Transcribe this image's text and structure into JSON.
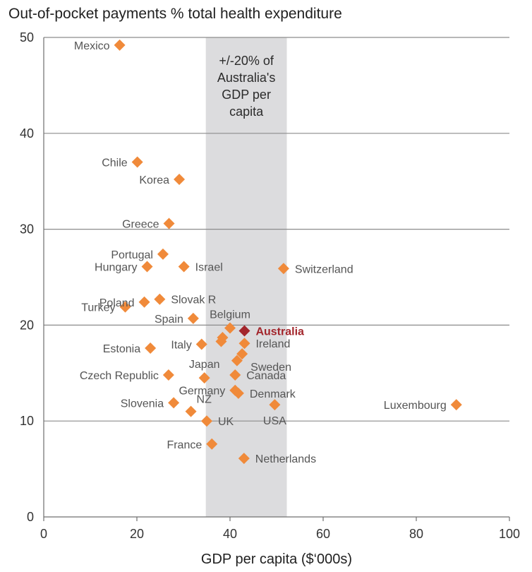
{
  "chart_data": {
    "type": "scatter",
    "title": "Out-of-pocket payments % total health expenditure",
    "xlabel": "GDP per capita ($‘000s)",
    "ylabel": "",
    "xlim": [
      0,
      100
    ],
    "ylim": [
      0,
      50
    ],
    "xticks": [
      0,
      20,
      40,
      60,
      80,
      100
    ],
    "yticks": [
      0,
      10,
      20,
      30,
      40,
      50
    ],
    "grid": "horizontal",
    "band": {
      "x_from": 34.8,
      "x_to": 52.2,
      "label": [
        "+/-20% of",
        "Australia's",
        "GDP per",
        "capita"
      ],
      "color": "#dcdcde"
    },
    "marker_color": "#f08a3a",
    "highlight_color": "#a3262c",
    "points": [
      {
        "label": "Mexico",
        "x": 16.3,
        "y": 49.2,
        "anchor": "left"
      },
      {
        "label": "Chile",
        "x": 20.1,
        "y": 37.0,
        "anchor": "left"
      },
      {
        "label": "Korea",
        "x": 29.1,
        "y": 35.2,
        "anchor": "left"
      },
      {
        "label": "Greece",
        "x": 26.9,
        "y": 30.6,
        "anchor": "left"
      },
      {
        "label": "Portugal",
        "x": 25.6,
        "y": 27.4,
        "anchor": "left"
      },
      {
        "label": "Hungary",
        "x": 22.2,
        "y": 26.1,
        "anchor": "left"
      },
      {
        "label": "Israel",
        "x": 30.1,
        "y": 26.1,
        "anchor": "right"
      },
      {
        "label": "Switzerland",
        "x": 51.5,
        "y": 25.9,
        "anchor": "right"
      },
      {
        "label": "Poland",
        "x": 21.6,
        "y": 22.4,
        "anchor": "left"
      },
      {
        "label": "Slovak R",
        "x": 24.9,
        "y": 22.7,
        "anchor": "right"
      },
      {
        "label": "Turkey",
        "x": 17.5,
        "y": 21.9,
        "anchor": "left"
      },
      {
        "label": "Belgium",
        "x": 40.0,
        "y": 19.7,
        "anchor": "above"
      },
      {
        "label": "Spain",
        "x": 32.1,
        "y": 20.7,
        "anchor": "left"
      },
      {
        "label": "Australia",
        "x": 43.1,
        "y": 19.4,
        "anchor": "right",
        "highlight": true
      },
      {
        "label": "Ireland",
        "x": 43.1,
        "y": 18.1,
        "anchor": "right"
      },
      {
        "label": "Estonia",
        "x": 22.9,
        "y": 17.6,
        "anchor": "left"
      },
      {
        "label": "Italy",
        "x": 33.9,
        "y": 18.0,
        "anchor": "left"
      },
      {
        "label": "Sweden",
        "x": 42.6,
        "y": 17.0,
        "anchor": "belowright"
      },
      {
        "label": "Japan",
        "x": 34.5,
        "y": 14.5,
        "anchor": "above"
      },
      {
        "label": "Czech Republic",
        "x": 26.8,
        "y": 14.8,
        "anchor": "left"
      },
      {
        "label": "Canada",
        "x": 41.1,
        "y": 14.8,
        "anchor": "right"
      },
      {
        "label": "Germany",
        "x": 41.1,
        "y": 13.2,
        "anchor": "left"
      },
      {
        "label": "Denmark",
        "x": 41.8,
        "y": 12.9,
        "anchor": "right"
      },
      {
        "label": "Slovenia",
        "x": 27.9,
        "y": 11.9,
        "anchor": "left"
      },
      {
        "label": "NZ",
        "x": 31.6,
        "y": 11.0,
        "anchor": "aboveright"
      },
      {
        "label": "USA",
        "x": 49.6,
        "y": 11.7,
        "anchor": "below"
      },
      {
        "label": "Luxembourg",
        "x": 88.6,
        "y": 11.7,
        "anchor": "left"
      },
      {
        "label": "UK",
        "x": 35.0,
        "y": 10.0,
        "anchor": "right"
      },
      {
        "label": "France",
        "x": 36.1,
        "y": 7.6,
        "anchor": "left"
      },
      {
        "label": "Netherlands",
        "x": 43.0,
        "y": 6.1,
        "anchor": "right"
      }
    ],
    "extra_points": [
      {
        "x": 38.1,
        "y": 18.3
      },
      {
        "x": 38.4,
        "y": 18.7
      },
      {
        "x": 41.5,
        "y": 16.3
      }
    ]
  }
}
